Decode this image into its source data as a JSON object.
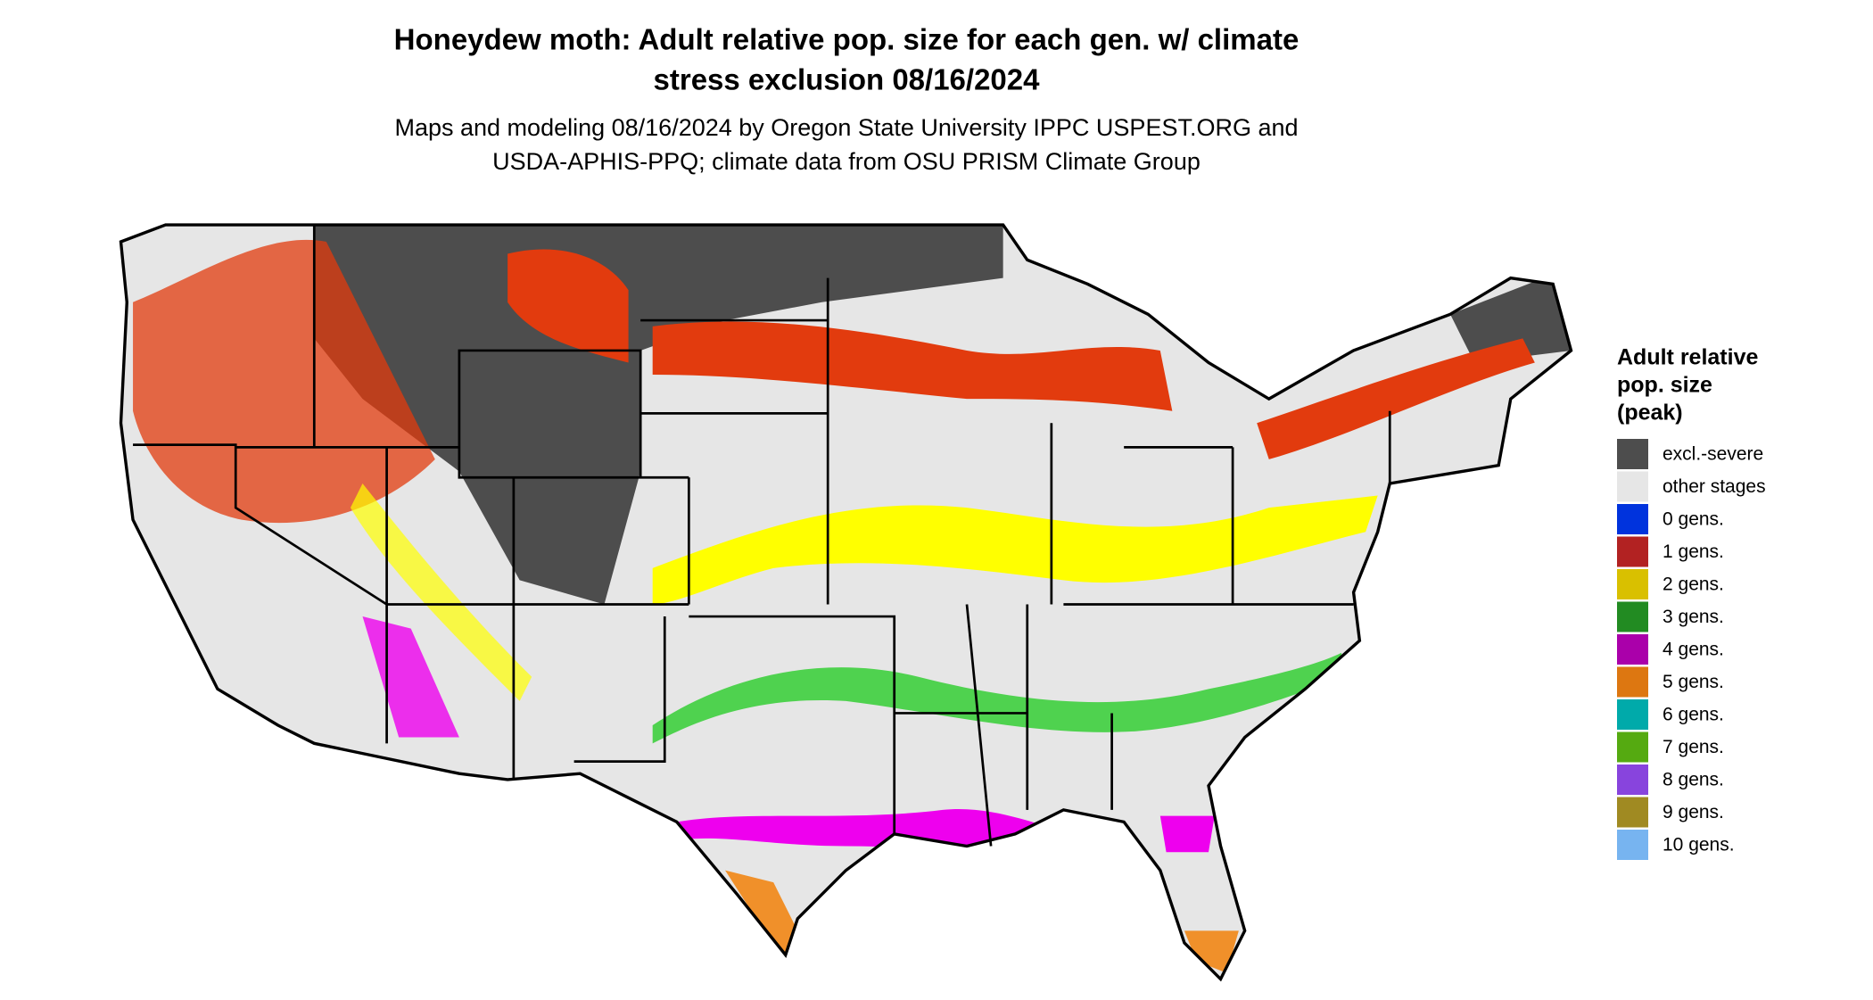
{
  "header": {
    "title": [
      "Honeydew moth: Adult relative pop. size for each gen. w/ climate",
      "stress exclusion 08/16/2024"
    ],
    "subtitle": [
      "Maps and modeling 08/16/2024 by Oregon State University IPPC USPEST.ORG and",
      "USDA-APHIS-PPQ; climate data from OSU PRISM Climate Group"
    ]
  },
  "legend": {
    "title": [
      "Adult relative",
      "pop. size",
      "(peak)"
    ],
    "items": [
      {
        "label": "excl.-severe",
        "color": "#4d4d4d"
      },
      {
        "label": "other stages",
        "color": "#e6e6e6"
      },
      {
        "label": "0 gens.",
        "color": "#0033dd"
      },
      {
        "label": "1 gens.",
        "color": "#b22222"
      },
      {
        "label": "2 gens.",
        "color": "#d9c000"
      },
      {
        "label": "3 gens.",
        "color": "#228b22"
      },
      {
        "label": "4 gens.",
        "color": "#aa00aa"
      },
      {
        "label": "5 gens.",
        "color": "#dd7711"
      },
      {
        "label": "6 gens.",
        "color": "#00aaaa"
      },
      {
        "label": "7 gens.",
        "color": "#55aa11"
      },
      {
        "label": "8 gens.",
        "color": "#8844dd"
      },
      {
        "label": "9 gens.",
        "color": "#a08a22"
      },
      {
        "label": "10 gens.",
        "color": "#77b4f0"
      }
    ]
  }
}
